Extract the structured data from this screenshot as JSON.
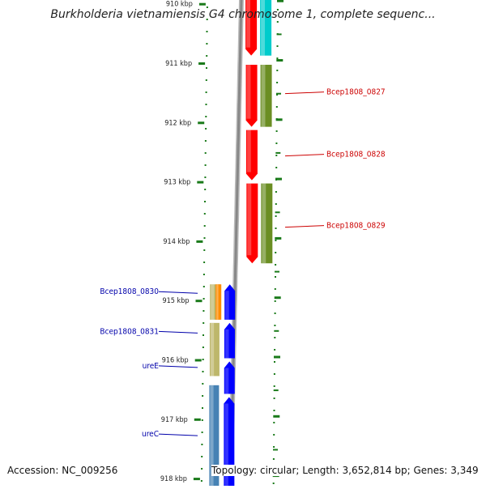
{
  "title": "Burkholderia vietnamiensis G4 chromosome 1, complete sequenc...",
  "footer": {
    "accession": "Accession: NC_009256",
    "stats": "Topology: circular; Length: 3,652,814 bp; Genes: 3,349"
  },
  "ruler": {
    "unit": "kbp",
    "ticks": [
      {
        "label": "910 kbp",
        "kbp": 910
      },
      {
        "label": "911 kbp",
        "kbp": 911
      },
      {
        "label": "912 kbp",
        "kbp": 912
      },
      {
        "label": "913 kbp",
        "kbp": 913
      },
      {
        "label": "914 kbp",
        "kbp": 914
      },
      {
        "label": "915 kbp",
        "kbp": 915
      },
      {
        "label": "916 kbp",
        "kbp": 916
      },
      {
        "label": "917 kbp",
        "kbp": 917
      },
      {
        "label": "918 kbp",
        "kbp": 918
      }
    ]
  },
  "colors": {
    "background": "#ffffff",
    "backbone": "#888888",
    "tick": "#1a7a1a",
    "label_forward": "#cc0000",
    "label_reverse": "#0000aa",
    "red": "#ff0000",
    "cyan": "#00cccc",
    "olive": "#6b8e23",
    "khaki": "#bdb76b",
    "orange": "#ff8c00",
    "blue": "#0000ff",
    "steelblue": "#4682b4"
  },
  "features": [
    {
      "track": "outer-forward",
      "start": 909.6,
      "end": 910.9,
      "color": "red",
      "arrow": "down"
    },
    {
      "track": "outer-forward-right",
      "start": 909.6,
      "end": 910.9,
      "color": "cyan",
      "arrow": "none"
    },
    {
      "track": "outer-forward",
      "start": 911.0,
      "end": 912.1,
      "color": "red",
      "arrow": "down"
    },
    {
      "track": "outer-forward-right",
      "start": 911.0,
      "end": 912.1,
      "color": "olive",
      "arrow": "none"
    },
    {
      "track": "outer-forward",
      "start": 912.1,
      "end": 913.0,
      "color": "red",
      "arrow": "down"
    },
    {
      "track": "outer-forward",
      "start": 913.0,
      "end": 914.4,
      "color": "red",
      "arrow": "down"
    },
    {
      "track": "outer-forward-right",
      "start": 913.0,
      "end": 914.4,
      "color": "olive",
      "arrow": "none"
    },
    {
      "track": "inner-reverse",
      "start": 914.7,
      "end": 915.35,
      "color": "blue",
      "arrow": "up"
    },
    {
      "track": "inner-reverse-left",
      "start": 914.7,
      "end": 915.35,
      "color": "khaki",
      "arrow": "none"
    },
    {
      "track": "inner-reverse-mid",
      "start": 914.7,
      "end": 915.35,
      "color": "orange",
      "arrow": "none"
    },
    {
      "track": "inner-reverse",
      "start": 915.35,
      "end": 916.0,
      "color": "blue",
      "arrow": "up"
    },
    {
      "track": "inner-reverse-left",
      "start": 915.35,
      "end": 916.3,
      "color": "khaki",
      "arrow": "none"
    },
    {
      "track": "inner-reverse",
      "start": 916.0,
      "end": 916.6,
      "color": "blue",
      "arrow": "up"
    },
    {
      "track": "inner-reverse",
      "start": 916.6,
      "end": 918.3,
      "color": "blue",
      "arrow": "up"
    },
    {
      "track": "inner-reverse-left",
      "start": 916.4,
      "end": 918.3,
      "color": "steelblue",
      "arrow": "none"
    }
  ],
  "labels": [
    {
      "text": "Bcep1808_0827",
      "kbp": 911.5,
      "side": "right"
    },
    {
      "text": "Bcep1808_0828",
      "kbp": 912.55,
      "side": "right"
    },
    {
      "text": "Bcep1808_0829",
      "kbp": 913.75,
      "side": "right"
    },
    {
      "text": "Bcep1808_0830",
      "kbp": 914.85,
      "side": "left"
    },
    {
      "text": "Bcep1808_0831",
      "kbp": 915.52,
      "side": "left"
    },
    {
      "text": "ureE",
      "kbp": 916.1,
      "side": "left"
    },
    {
      "text": "ureC",
      "kbp": 917.25,
      "side": "left"
    }
  ]
}
